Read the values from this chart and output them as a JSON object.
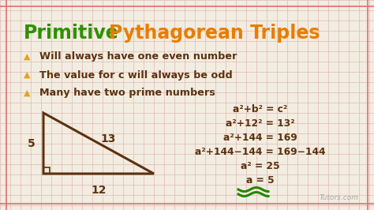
{
  "title_primitive": "Primitive",
  "title_rest": "Pythagorean Triples",
  "title_primitive_color": "#2e9000",
  "title_rest_color": "#e87d00",
  "title_fontsize": 17,
  "bg_color": "#f2ede0",
  "bullet_color": "#e8a020",
  "text_color": "#5c3210",
  "bullet_points": [
    "Will always have one even number",
    "The value for c will always be odd",
    "Many have two prime numbers"
  ],
  "bullet_fontsize": 9.2,
  "triangle_color": "#5c3210",
  "eq_lines": [
    "a²+b² = c²",
    "a²+12² = 13²",
    "a²+144 = 169",
    "a²+144−144 = 169−144",
    "a² = 25",
    "a = 5"
  ],
  "eq_fontsize": 8.8,
  "grid_line_color": "#e0b8b8",
  "watermark": "Tutors.com",
  "watermark_color": "#aaaaaa",
  "border_color": "#e07070"
}
